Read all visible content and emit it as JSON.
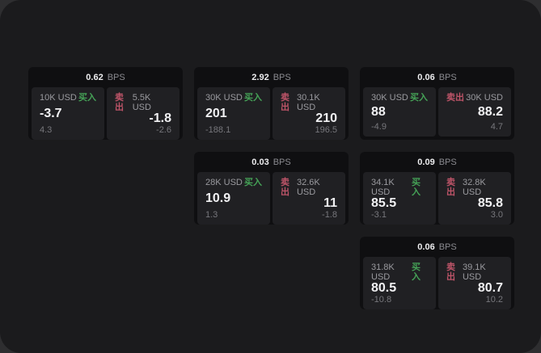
{
  "labels": {
    "bps_unit": "BPS",
    "buy": "买入",
    "sell": "卖出"
  },
  "colors": {
    "buy-green": "#45a257",
    "sell-red": "#bd5468",
    "panel-bg": "#1b1b1d",
    "card-bg": "#0f0f11",
    "tile-bg": "#202023"
  },
  "cards": [
    {
      "bps": "0.62",
      "buy": {
        "amount": "10K USD",
        "price": "-3.7",
        "delta": "4.3"
      },
      "sell": {
        "amount": "5.5K USD",
        "price": "-1.8",
        "delta": "-2.6"
      }
    },
    {
      "bps": "2.92",
      "buy": {
        "amount": "30K USD",
        "price": "201",
        "delta": "-188.1"
      },
      "sell": {
        "amount": "30.1K USD",
        "price": "210",
        "delta": "196.5"
      }
    },
    {
      "bps": "0.06",
      "buy": {
        "amount": "30K USD",
        "price": "88",
        "delta": "-4.9"
      },
      "sell": {
        "amount": "30K USD",
        "price": "88.2",
        "delta": "4.7"
      }
    },
    {
      "bps": "0.03",
      "buy": {
        "amount": "28K USD",
        "price": "10.9",
        "delta": "1.3"
      },
      "sell": {
        "amount": "32.6K USD",
        "price": "11",
        "delta": "-1.8"
      }
    },
    {
      "bps": "0.09",
      "buy": {
        "amount": "34.1K USD",
        "price": "85.5",
        "delta": "-3.1"
      },
      "sell": {
        "amount": "32.8K USD",
        "price": "85.8",
        "delta": "3.0"
      }
    },
    {
      "bps": "0.06",
      "buy": {
        "amount": "31.8K USD",
        "price": "80.5",
        "delta": "-10.8"
      },
      "sell": {
        "amount": "39.1K USD",
        "price": "80.7",
        "delta": "10.2"
      }
    }
  ]
}
